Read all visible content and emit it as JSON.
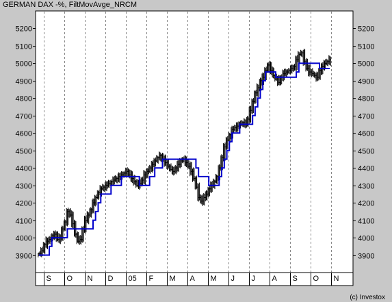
{
  "chart_data": {
    "type": "line",
    "title": "GERMAN DAX -%,  FiltMovAvge_NRCM",
    "copyright": "(c) Investox",
    "y_ticks": [
      3900,
      4000,
      4100,
      4200,
      4300,
      4400,
      4500,
      4600,
      4700,
      4800,
      4900,
      5000,
      5100,
      5200
    ],
    "ylim": [
      3800,
      5300
    ],
    "x_labels": [
      "S",
      "O",
      "N",
      "D",
      "05",
      "F",
      "M",
      "A",
      "M",
      "J",
      "J",
      "A",
      "S",
      "O",
      "N"
    ],
    "grid": true,
    "series": [
      {
        "kind": "ohlc",
        "color": "#000000",
        "values": [
          3910,
          3925,
          3960,
          3980,
          3990,
          4010,
          4020,
          3990,
          4000,
          4050,
          4090,
          4150,
          4130,
          4080,
          4020,
          3980,
          3990,
          4050,
          4100,
          4130,
          4160,
          4200,
          4230,
          4260,
          4280,
          4290,
          4300,
          4310,
          4320,
          4330,
          4340,
          4350,
          4360,
          4370,
          4380,
          4360,
          4340,
          4320,
          4300,
          4310,
          4330,
          4360,
          4380,
          4400,
          4420,
          4440,
          4460,
          4470,
          4450,
          4430,
          4410,
          4390,
          4380,
          4400,
          4420,
          4440,
          4450,
          4430,
          4410,
          4380,
          4340,
          4290,
          4230,
          4210,
          4230,
          4250,
          4280,
          4300,
          4320,
          4350,
          4400,
          4460,
          4520,
          4560,
          4590,
          4620,
          4630,
          4640,
          4650,
          4660,
          4650,
          4680,
          4730,
          4780,
          4830,
          4860,
          4900,
          4920,
          4960,
          4990,
          4960,
          4930,
          4910,
          4890,
          4920,
          4940,
          4950,
          4960,
          4970,
          4980,
          5020,
          5050,
          5060,
          5010,
          4970,
          4950,
          4940,
          4930,
          4920,
          4960,
          4980,
          5000,
          5010,
          5020
        ]
      },
      {
        "name": "FiltMovAvge_NRCM",
        "kind": "step",
        "color": "#0000cc",
        "values": [
          3900,
          3900,
          3900,
          3900,
          3950,
          4000,
          4000,
          4000,
          4000,
          4000,
          4000,
          4050,
          4050,
          4050,
          4050,
          4050,
          4050,
          4050,
          4050,
          4050,
          4050,
          4100,
          4150,
          4200,
          4250,
          4250,
          4250,
          4250,
          4300,
          4300,
          4300,
          4300,
          4350,
          4350,
          4350,
          4350,
          4350,
          4350,
          4350,
          4300,
          4300,
          4300,
          4300,
          4350,
          4350,
          4400,
          4400,
          4400,
          4450,
          4450,
          4450,
          4450,
          4450,
          4450,
          4450,
          4450,
          4450,
          4450,
          4450,
          4450,
          4450,
          4400,
          4350,
          4350,
          4350,
          4350,
          4300,
          4300,
          4300,
          4300,
          4350,
          4400,
          4450,
          4500,
          4550,
          4600,
          4600,
          4600,
          4650,
          4650,
          4650,
          4650,
          4650,
          4700,
          4750,
          4800,
          4850,
          4900,
          4950,
          4950,
          4950,
          4950,
          4920,
          4920,
          4920,
          4920,
          4920,
          4920,
          4920,
          4920,
          4950,
          5000,
          5000,
          5000,
          5000,
          5000,
          5000,
          5000,
          5000,
          4970,
          4970,
          4970,
          4970,
          4970
        ]
      }
    ]
  }
}
